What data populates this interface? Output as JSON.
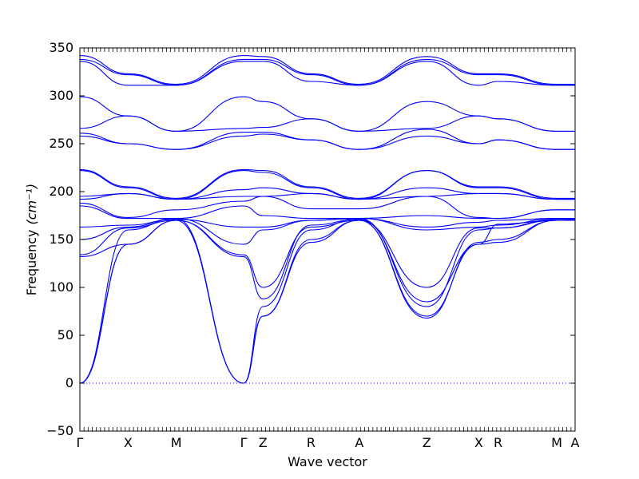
{
  "chart_data": {
    "type": "line",
    "xlabel": "Wave vector",
    "ylabel": "Frequency",
    "ylabel_unit": "(cm⁻¹)",
    "ylim": [
      -50,
      350
    ],
    "yticks": [
      -50,
      0,
      50,
      100,
      150,
      200,
      250,
      300,
      350
    ],
    "grid": false,
    "x_path_points": [
      "Γ",
      "X",
      "M",
      "Γ",
      "Z",
      "R",
      "A",
      "Z",
      "X",
      "R",
      "M",
      "A"
    ],
    "x_path_positions": [
      0,
      0.5,
      1.0,
      1.7,
      1.9,
      2.4,
      2.9,
      3.6,
      4.14,
      4.34,
      4.95,
      5.14
    ],
    "zero_line": 0,
    "line_color": "#0000ff",
    "bands": [
      {
        "name": "",
        "x": [
          0,
          0.5,
          1.0,
          1.7,
          1.9,
          2.4,
          2.9,
          3.6,
          4.14,
          4.34,
          4.95,
          5.14
        ],
        "values": [
          0,
          145,
          170,
          0,
          70,
          147,
          170,
          70,
          145,
          147,
          170,
          170
        ]
      },
      {
        "name": "",
        "x": [
          0,
          0.5,
          1.0,
          1.7,
          1.9,
          2.4,
          2.9,
          3.6,
          4.14,
          4.34,
          4.95,
          5.14
        ],
        "values": [
          0,
          145,
          170,
          0,
          70,
          150,
          170,
          68,
          147,
          150,
          170,
          171
        ]
      },
      {
        "name": "",
        "x": [
          0,
          0.5,
          1.0,
          1.7,
          1.9,
          2.4,
          2.9,
          3.6,
          4.14,
          4.34,
          4.95,
          5.14
        ],
        "values": [
          0,
          160,
          172,
          0,
          80,
          160,
          172,
          80,
          160,
          162,
          171,
          172
        ]
      },
      {
        "name": "",
        "x": [
          0,
          0.5,
          1.0,
          1.7,
          1.9,
          2.4,
          2.9,
          3.6,
          4.14,
          4.34,
          4.95,
          5.14
        ],
        "values": [
          132,
          145,
          170,
          132,
          88,
          165,
          171,
          85,
          145,
          166,
          170,
          170
        ]
      },
      {
        "name": "",
        "x": [
          0,
          0.5,
          1.0,
          1.7,
          1.9,
          2.4,
          2.9,
          3.6,
          4.14,
          4.34,
          4.95,
          5.14
        ],
        "values": [
          134,
          162,
          170,
          134,
          100,
          163,
          170,
          100,
          162,
          162,
          170,
          170
        ]
      },
      {
        "name": "",
        "x": [
          0,
          0.5,
          1.0,
          1.7,
          1.9,
          2.4,
          2.9,
          3.6,
          4.14,
          4.34,
          4.95,
          5.14
        ],
        "values": [
          150,
          163,
          172,
          145,
          160,
          170,
          172,
          160,
          163,
          165,
          172,
          172
        ]
      },
      {
        "name": "",
        "x": [
          0,
          0.5,
          1.0,
          1.7,
          1.9,
          2.4,
          2.9,
          3.6,
          4.14,
          4.34,
          4.95,
          5.14
        ],
        "values": [
          163,
          165,
          171,
          163,
          163,
          170,
          172,
          163,
          168,
          170,
          172,
          172
        ]
      },
      {
        "name": "",
        "x": [
          0,
          0.5,
          1.0,
          1.7,
          1.9,
          2.4,
          2.9,
          3.6,
          4.14,
          4.34,
          4.95,
          5.14
        ],
        "values": [
          185,
          172,
          172,
          185,
          175,
          172,
          172,
          175,
          172,
          172,
          181,
          181
        ]
      },
      {
        "name": "",
        "x": [
          0,
          0.5,
          1.0,
          1.7,
          1.9,
          2.4,
          2.9,
          3.6,
          4.14,
          4.34,
          4.95,
          5.14
        ],
        "values": [
          188,
          173,
          181,
          190,
          195,
          182,
          182,
          195,
          173,
          172,
          181,
          181
        ]
      },
      {
        "name": "",
        "x": [
          0,
          0.5,
          1.0,
          1.7,
          1.9,
          2.4,
          2.9,
          3.6,
          4.14,
          4.34,
          4.95,
          5.14
        ],
        "values": [
          192,
          198,
          192,
          195,
          195,
          198,
          192,
          195,
          198,
          198,
          192,
          192
        ]
      },
      {
        "name": "",
        "x": [
          0,
          0.5,
          1.0,
          1.7,
          1.9,
          2.4,
          2.9,
          3.6,
          4.14,
          4.34,
          4.95,
          5.14
        ],
        "values": [
          195,
          198,
          192,
          202,
          204,
          198,
          192,
          204,
          198,
          198,
          192,
          192
        ]
      },
      {
        "name": "",
        "x": [
          0,
          0.5,
          1.0,
          1.7,
          1.9,
          2.4,
          2.9,
          3.6,
          4.14,
          4.34,
          4.95,
          5.14
        ],
        "values": [
          222,
          204,
          192,
          222,
          220,
          204,
          192,
          222,
          204,
          204,
          192,
          192
        ]
      },
      {
        "name": "",
        "x": [
          0,
          0.5,
          1.0,
          1.7,
          1.9,
          2.4,
          2.9,
          3.6,
          4.14,
          4.34,
          4.95,
          5.14
        ],
        "values": [
          223,
          205,
          193,
          223,
          222,
          205,
          193,
          222,
          205,
          205,
          193,
          193
        ]
      },
      {
        "name": "",
        "x": [
          0,
          0.5,
          1.0,
          1.7,
          1.9,
          2.4,
          2.9,
          3.6,
          4.14,
          4.34,
          4.95,
          5.14
        ],
        "values": [
          258,
          250,
          244,
          258,
          260,
          254,
          244,
          258,
          250,
          254,
          244,
          244
        ]
      },
      {
        "name": "",
        "x": [
          0,
          0.5,
          1.0,
          1.7,
          1.9,
          2.4,
          2.9,
          3.6,
          4.14,
          4.34,
          4.95,
          5.14
        ],
        "values": [
          261,
          250,
          244,
          262,
          262,
          254,
          244,
          265,
          250,
          254,
          244,
          244
        ]
      },
      {
        "name": "",
        "x": [
          0,
          0.5,
          1.0,
          1.7,
          1.9,
          2.4,
          2.9,
          3.6,
          4.14,
          4.34,
          4.95,
          5.14
        ],
        "values": [
          266,
          279,
          263,
          266,
          267,
          276,
          263,
          266,
          279,
          276,
          263,
          263
        ]
      },
      {
        "name": "",
        "x": [
          0,
          0.5,
          1.0,
          1.7,
          1.9,
          2.4,
          2.9,
          3.6,
          4.14,
          4.34,
          4.95,
          5.14
        ],
        "values": [
          299,
          279,
          263,
          299,
          294,
          276,
          263,
          294,
          279,
          276,
          263,
          263
        ]
      },
      {
        "name": "",
        "x": [
          0,
          0.5,
          1.0,
          1.7,
          1.9,
          2.4,
          2.9,
          3.6,
          4.14,
          4.34,
          4.95,
          5.14
        ],
        "values": [
          336,
          311,
          311,
          336,
          336,
          315,
          311,
          336,
          311,
          315,
          311,
          311
        ]
      },
      {
        "name": "",
        "x": [
          0,
          0.5,
          1.0,
          1.7,
          1.9,
          2.4,
          2.9,
          3.6,
          4.14,
          4.34,
          4.95,
          5.14
        ],
        "values": [
          338,
          322,
          311,
          338,
          338,
          322,
          311,
          338,
          322,
          322,
          311,
          311
        ]
      },
      {
        "name": "",
        "x": [
          0,
          0.5,
          1.0,
          1.7,
          1.9,
          2.4,
          2.9,
          3.6,
          4.14,
          4.34,
          4.95,
          5.14
        ],
        "values": [
          342,
          323,
          312,
          342,
          341,
          323,
          312,
          341,
          323,
          323,
          312,
          312
        ]
      }
    ]
  }
}
